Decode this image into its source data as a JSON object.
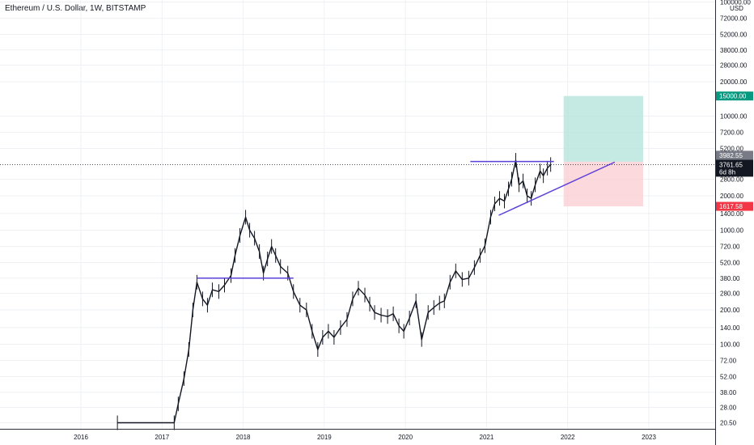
{
  "header": {
    "title": "Ethereum / U.S. Dollar, 1W, BITSTAMP"
  },
  "chart_data": {
    "type": "candlestick",
    "symbol": "Ethereum / U.S. Dollar",
    "interval": "1W",
    "exchange": "BITSTAMP",
    "y_axis": {
      "scale": "log",
      "unit": "USD",
      "tick_labels": [
        "100000.00",
        "72000.00",
        "52000.00",
        "38000.00",
        "28000.00",
        "20000.00",
        "10000.00",
        "7200.00",
        "5200.00",
        "2800.00",
        "2000.00",
        "1400.00",
        "1000.00",
        "720.00",
        "520.00",
        "380.00",
        "280.00",
        "200.00",
        "140.00",
        "100.00",
        "72.00",
        "52.00",
        "38.00",
        "28.00",
        "20.50"
      ],
      "tick_values": [
        100000,
        72000,
        52000,
        38000,
        28000,
        20000,
        10000,
        7200,
        5200,
        2800,
        2000,
        1400,
        1000,
        720,
        520,
        380,
        280,
        200,
        140,
        100,
        72,
        52,
        38,
        28,
        20.5
      ]
    },
    "x_axis": {
      "tick_labels": [
        "2016",
        "2017",
        "2018",
        "2019",
        "2020",
        "2021",
        "2022",
        "2023"
      ],
      "tick_years": [
        2016,
        2017,
        2018,
        2019,
        2020,
        2021,
        2022,
        2023
      ]
    },
    "price_series": [
      [
        2016.45,
        20.5
      ],
      [
        2017.15,
        20.5
      ],
      [
        2017.2,
        30
      ],
      [
        2017.27,
        50
      ],
      [
        2017.33,
        90
      ],
      [
        2017.38,
        200
      ],
      [
        2017.43,
        350
      ],
      [
        2017.5,
        250
      ],
      [
        2017.56,
        220
      ],
      [
        2017.62,
        300
      ],
      [
        2017.7,
        290
      ],
      [
        2017.77,
        330
      ],
      [
        2017.85,
        400
      ],
      [
        2017.9,
        600
      ],
      [
        2017.96,
        900
      ],
      [
        2018.03,
        1300
      ],
      [
        2018.08,
        1000
      ],
      [
        2018.14,
        850
      ],
      [
        2018.2,
        650
      ],
      [
        2018.25,
        420
      ],
      [
        2018.3,
        560
      ],
      [
        2018.35,
        720
      ],
      [
        2018.4,
        600
      ],
      [
        2018.46,
        480
      ],
      [
        2018.55,
        420
      ],
      [
        2018.62,
        290
      ],
      [
        2018.7,
        220
      ],
      [
        2018.78,
        200
      ],
      [
        2018.85,
        130
      ],
      [
        2018.92,
        90
      ],
      [
        2018.98,
        115
      ],
      [
        2019.05,
        130
      ],
      [
        2019.12,
        115
      ],
      [
        2019.2,
        140
      ],
      [
        2019.28,
        165
      ],
      [
        2019.35,
        250
      ],
      [
        2019.42,
        310
      ],
      [
        2019.5,
        270
      ],
      [
        2019.56,
        225
      ],
      [
        2019.62,
        190
      ],
      [
        2019.7,
        180
      ],
      [
        2019.78,
        175
      ],
      [
        2019.85,
        185
      ],
      [
        2019.92,
        145
      ],
      [
        2019.98,
        130
      ],
      [
        2020.05,
        170
      ],
      [
        2020.13,
        240
      ],
      [
        2020.2,
        110
      ],
      [
        2020.28,
        190
      ],
      [
        2020.35,
        210
      ],
      [
        2020.42,
        230
      ],
      [
        2020.48,
        240
      ],
      [
        2020.55,
        350
      ],
      [
        2020.62,
        440
      ],
      [
        2020.7,
        370
      ],
      [
        2020.78,
        380
      ],
      [
        2020.85,
        470
      ],
      [
        2020.92,
        600
      ],
      [
        2020.98,
        730
      ],
      [
        2021.05,
        1300
      ],
      [
        2021.1,
        1700
      ],
      [
        2021.16,
        1900
      ],
      [
        2021.22,
        1800
      ],
      [
        2021.27,
        2300
      ],
      [
        2021.31,
        2800
      ],
      [
        2021.36,
        4100
      ],
      [
        2021.4,
        2500
      ],
      [
        2021.45,
        2700
      ],
      [
        2021.5,
        2000
      ],
      [
        2021.55,
        1900
      ],
      [
        2021.6,
        2500
      ],
      [
        2021.66,
        3300
      ],
      [
        2021.7,
        3000
      ],
      [
        2021.75,
        3500
      ],
      [
        2021.79,
        3761.65
      ]
    ],
    "lines": [
      {
        "name": "resistance",
        "from": [
          2020.8,
          4000
        ],
        "to": [
          2021.83,
          4000
        ]
      },
      {
        "name": "support",
        "from": [
          2021.15,
          1350
        ],
        "to": [
          2022.58,
          3950
        ]
      },
      {
        "name": "range",
        "from": [
          2017.43,
          380
        ],
        "to": [
          2018.62,
          380
        ]
      }
    ],
    "position": {
      "type": "long",
      "entry": 3982.55,
      "target": 15000,
      "stop": 1617.58,
      "x_start": 2021.95,
      "x_end": 2022.93
    },
    "current_price": 3761.65,
    "bar_countdown": "6d 8h",
    "price_badges": {
      "current": "3761.65",
      "countdown": "6d 8h",
      "entry": "3982.55",
      "target": "15000.00",
      "stop": "1617.58"
    },
    "colors": {
      "candle": "#131722",
      "trendline": "#5b3fd9",
      "target_fill": "#b7e4dc",
      "stop_fill": "#fbd0d3",
      "target_badge": "#089981",
      "stop_badge": "#f23645",
      "entry_badge": "#787b86",
      "current_badge": "#131722",
      "grid": "#eef0f3"
    }
  }
}
